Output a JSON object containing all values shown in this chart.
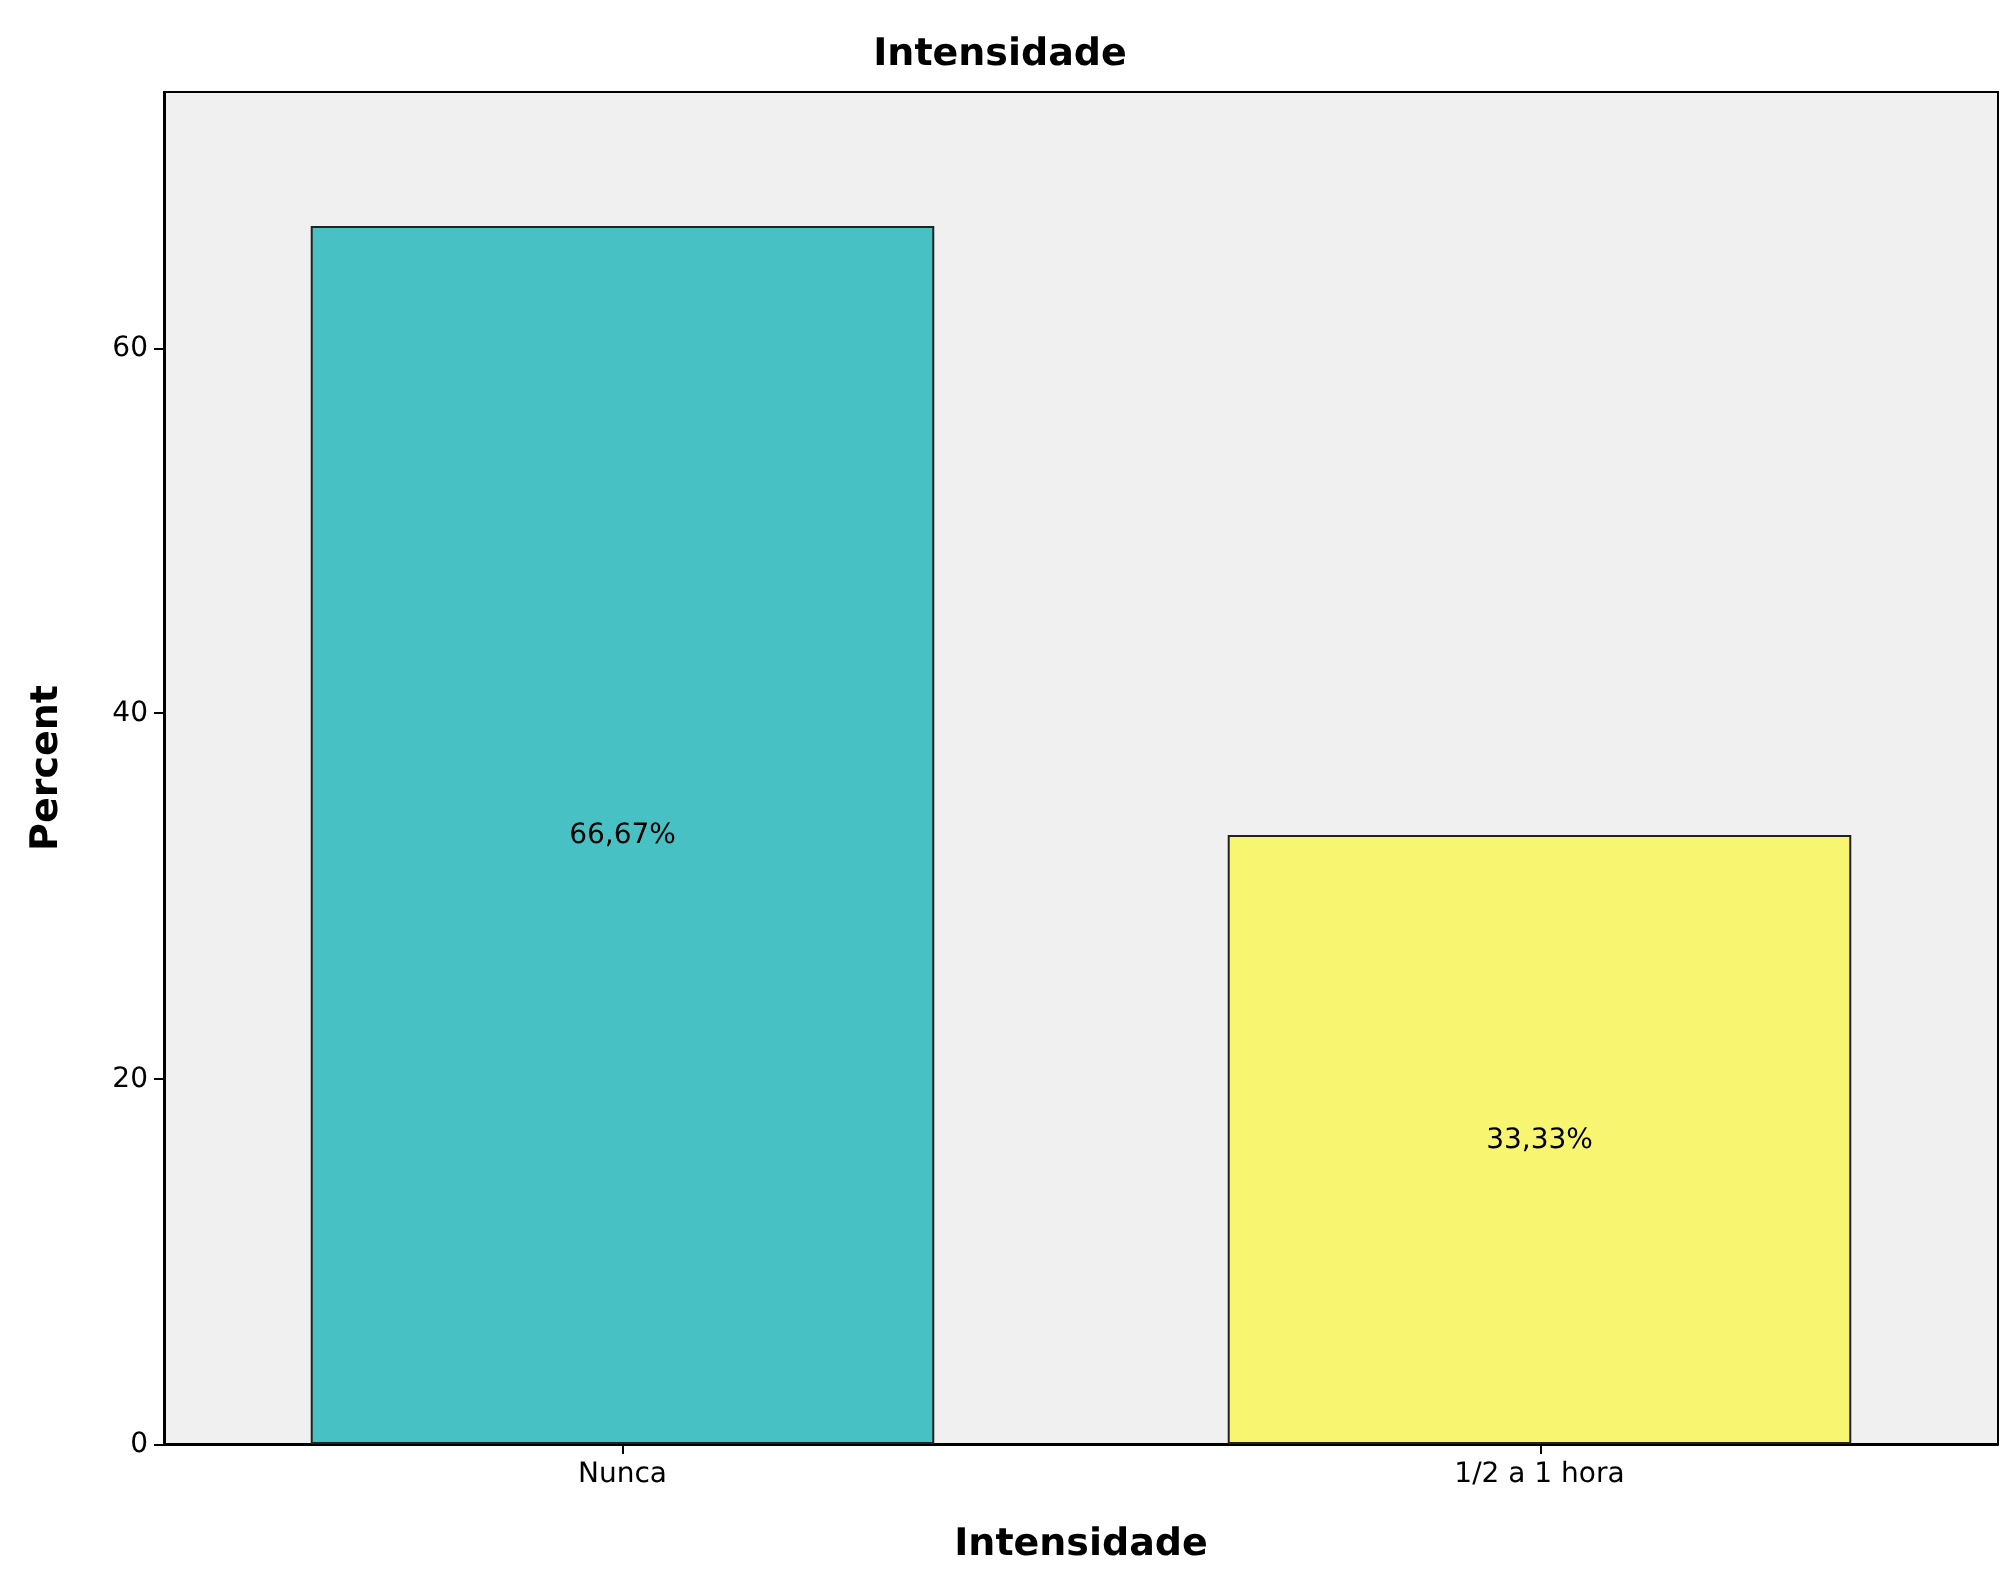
{
  "chart_data": {
    "type": "bar",
    "title": "Intensidade",
    "xlabel": "Intensidade",
    "ylabel": "Percent",
    "categories": [
      "Nunca",
      "1/2 a 1 hora"
    ],
    "values": [
      66.67,
      33.33
    ],
    "colors": [
      "#48c1c5",
      "#f8f571"
    ],
    "value_labels": [
      "66,67%",
      "33,33%"
    ],
    "ylim": [
      0,
      74
    ],
    "yticks": [
      0,
      20,
      40,
      60
    ],
    "grid": false
  }
}
